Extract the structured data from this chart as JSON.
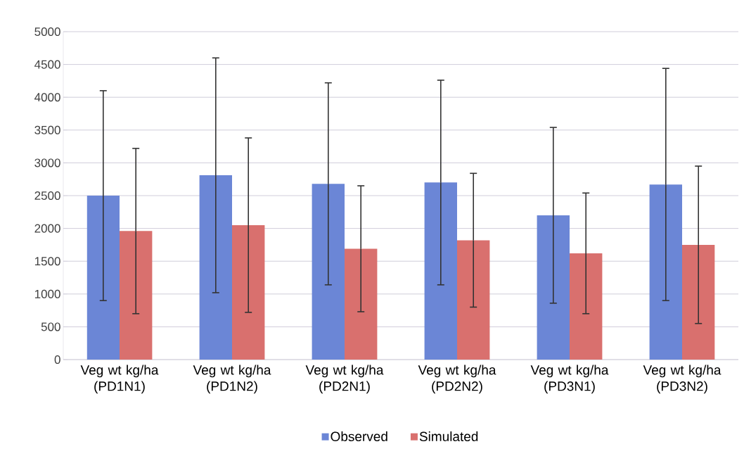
{
  "chart_data": {
    "type": "bar",
    "categories": [
      "Veg wt kg/ha (PD1N1)",
      "Veg wt kg/ha (PD1N2)",
      "Veg wt kg/ha (PD2N1)",
      "Veg wt kg/ha (PD2N2)",
      "Veg wt kg/ha (PD3N1)",
      "Veg wt kg/ha (PD3N2)"
    ],
    "series": [
      {
        "name": "Observed",
        "color": "#6b86d6",
        "values": [
          2500,
          2810,
          2680,
          2700,
          2200,
          2670
        ],
        "errors": [
          1600,
          1790,
          1540,
          1560,
          1340,
          1770
        ]
      },
      {
        "name": "Simulated",
        "color": "#d9706e",
        "values": [
          1960,
          2050,
          1690,
          1820,
          1620,
          1750
        ],
        "errors": [
          1260,
          1330,
          960,
          1020,
          920,
          1200
        ]
      }
    ],
    "ylim": [
      0,
      5000
    ],
    "yticks": [
      0,
      500,
      1000,
      1500,
      2000,
      2500,
      3000,
      3500,
      4000,
      4500,
      5000
    ],
    "grid": "y",
    "legend": "bottom"
  }
}
